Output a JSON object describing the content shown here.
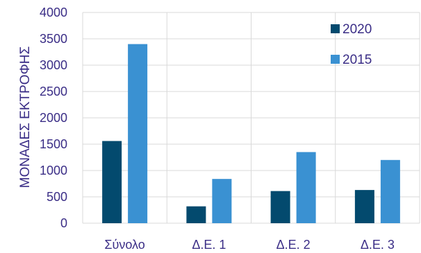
{
  "chart_data": {
    "type": "bar",
    "title": "",
    "xlabel": "",
    "ylabel": "ΜΟΝΑΔΕΣ ΕΚΤΡΟΦΗΣ",
    "ylim": [
      0,
      4000
    ],
    "yticks": [
      0,
      500,
      1000,
      1500,
      2000,
      2500,
      3000,
      3500,
      4000
    ],
    "grid": true,
    "legend_position": "top-right",
    "categories": [
      "Σύνολο",
      "Δ.Ε. 1",
      "Δ.Ε. 2",
      "Δ.Ε. 3"
    ],
    "series": [
      {
        "name": "2020",
        "color": "#034a6e",
        "values": [
          1560,
          320,
          610,
          630
        ]
      },
      {
        "name": "2015",
        "color": "#3a91d2",
        "values": [
          3400,
          840,
          1350,
          1200
        ]
      }
    ],
    "axis_text_color": "#3a2d86",
    "grid_color": "#d9d9d9"
  }
}
